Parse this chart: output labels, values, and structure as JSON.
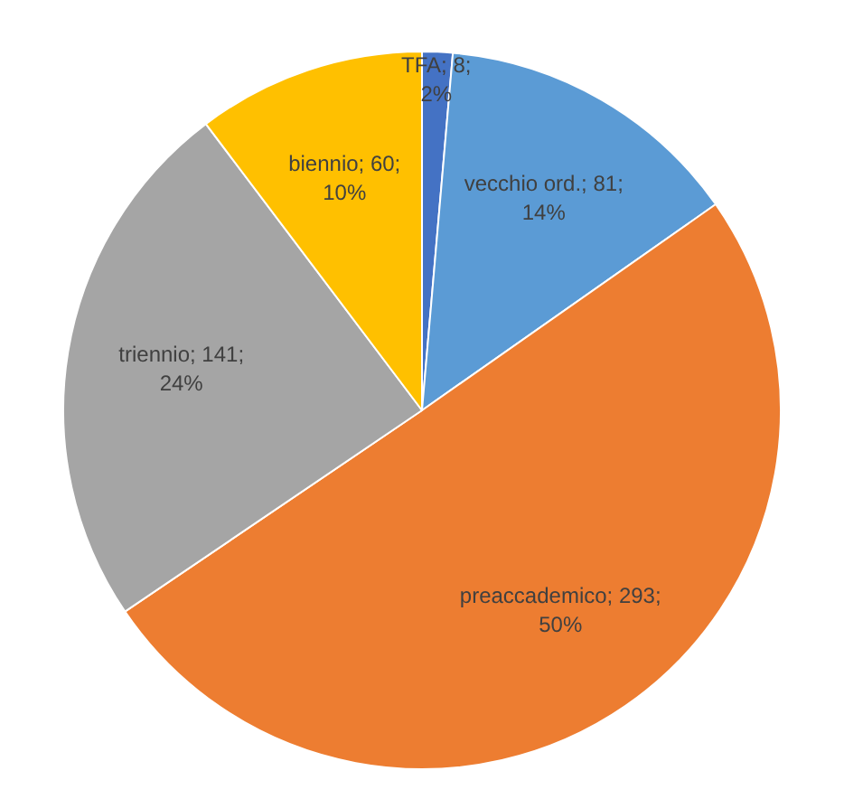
{
  "chart_data": {
    "type": "pie",
    "categories": [
      "TFA",
      "vecchio ord.",
      "preaccademico",
      "triennio",
      "biennio"
    ],
    "values": [
      8,
      81,
      293,
      141,
      60
    ],
    "colors": [
      "#4472c4",
      "#5b9bd5",
      "#ed7d31",
      "#a5a5a5",
      "#ffc000"
    ],
    "data_labels": true,
    "value_labels": [
      "; 8; 2%",
      "; 81; 14%",
      "; 293; 50%",
      "; 141; 24%",
      "; 60; 10%"
    ],
    "legend": false
  }
}
